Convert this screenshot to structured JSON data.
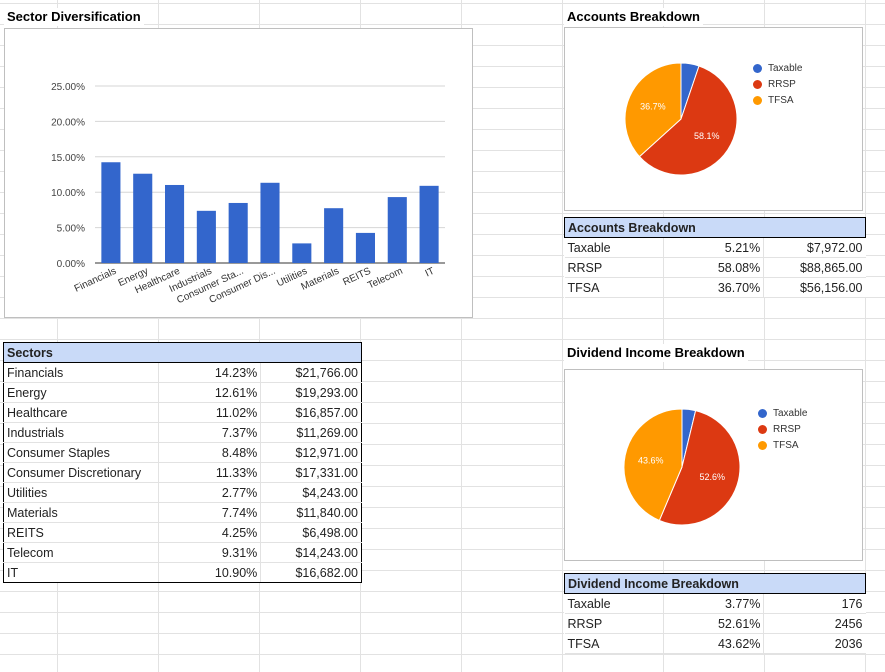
{
  "sector_chart": {
    "title": "Sector Diversification",
    "chart_data": {
      "type": "bar",
      "categories": [
        "Financials",
        "Energy",
        "Healthcare",
        "Industrials",
        "Consumer Sta...",
        "Consumer Dis...",
        "Utilities",
        "Materials",
        "REITS",
        "Telecom",
        "IT"
      ],
      "values": [
        14.23,
        12.61,
        11.02,
        7.37,
        8.48,
        11.33,
        2.77,
        7.74,
        4.25,
        9.31,
        10.9
      ],
      "yticks": [
        "0.00%",
        "5.00%",
        "10.00%",
        "15.00%",
        "20.00%",
        "25.00%"
      ],
      "ylim": [
        0,
        25
      ],
      "grid": true,
      "color": "#3366cc"
    }
  },
  "accounts_chart": {
    "title": "Accounts Breakdown",
    "chart_data": {
      "type": "pie",
      "labels": [
        "Taxable",
        "RRSP",
        "TFSA"
      ],
      "values": [
        5.21,
        58.08,
        36.7
      ],
      "slice_labels": [
        "",
        "58.1%",
        "36.7%"
      ],
      "colors": [
        "#3366cc",
        "#dc3912",
        "#ff9900"
      ],
      "legend": "right"
    }
  },
  "dividend_chart": {
    "title": "Dividend Income Breakdown",
    "chart_data": {
      "type": "pie",
      "labels": [
        "Taxable",
        "RRSP",
        "TFSA"
      ],
      "values": [
        3.77,
        52.61,
        43.62
      ],
      "slice_labels": [
        "",
        "52.6%",
        "43.6%"
      ],
      "colors": [
        "#3366cc",
        "#dc3912",
        "#ff9900"
      ],
      "legend": "right"
    }
  },
  "sectors_table": {
    "header": "Sectors",
    "rows": [
      {
        "name": "Financials",
        "pct": "14.23%",
        "amount": "$21,766.00"
      },
      {
        "name": "Energy",
        "pct": "12.61%",
        "amount": "$19,293.00"
      },
      {
        "name": "Healthcare",
        "pct": "11.02%",
        "amount": "$16,857.00"
      },
      {
        "name": "Industrials",
        "pct": "7.37%",
        "amount": "$11,269.00"
      },
      {
        "name": "Consumer Staples",
        "pct": "8.48%",
        "amount": "$12,971.00"
      },
      {
        "name": "Consumer Discretionary",
        "pct": "11.33%",
        "amount": "$17,331.00"
      },
      {
        "name": "Utilities",
        "pct": "2.77%",
        "amount": "$4,243.00"
      },
      {
        "name": "Materials",
        "pct": "7.74%",
        "amount": "$11,840.00"
      },
      {
        "name": "REITS",
        "pct": "4.25%",
        "amount": "$6,498.00"
      },
      {
        "name": "Telecom",
        "pct": "9.31%",
        "amount": "$14,243.00"
      },
      {
        "name": "IT",
        "pct": "10.90%",
        "amount": "$16,682.00"
      }
    ]
  },
  "accounts_table": {
    "header": "Accounts Breakdown",
    "rows": [
      {
        "name": "Taxable",
        "pct": "5.21%",
        "amount": "$7,972.00"
      },
      {
        "name": "RRSP",
        "pct": "58.08%",
        "amount": "$88,865.00"
      },
      {
        "name": "TFSA",
        "pct": "36.70%",
        "amount": "$56,156.00"
      }
    ]
  },
  "dividend_table": {
    "header": "Dividend Income Breakdown",
    "rows": [
      {
        "name": "Taxable",
        "pct": "3.77%",
        "amount": "176"
      },
      {
        "name": "RRSP",
        "pct": "52.61%",
        "amount": "2456"
      },
      {
        "name": "TFSA",
        "pct": "43.62%",
        "amount": "2036"
      }
    ]
  }
}
